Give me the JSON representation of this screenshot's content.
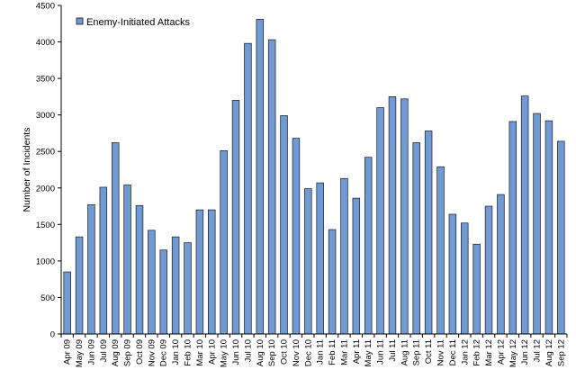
{
  "chart_data": {
    "type": "bar",
    "title": "",
    "xlabel": "",
    "ylabel": "Number of Incidents",
    "ylim": [
      0,
      4500
    ],
    "yticks": [
      0,
      500,
      1000,
      1500,
      2000,
      2500,
      3000,
      3500,
      4000,
      4500
    ],
    "grid": false,
    "legend_position": "top-left",
    "series": [
      {
        "name": "Enemy-Initiated Attacks",
        "color": "#6f9ad3",
        "values": [
          850,
          1330,
          1770,
          2010,
          2620,
          2040,
          1760,
          1420,
          1150,
          1330,
          1250,
          1700,
          1700,
          2510,
          3200,
          3980,
          4310,
          4030,
          2990,
          2680,
          1990,
          2070,
          1430,
          2130,
          1860,
          2420,
          3100,
          3250,
          3220,
          2620,
          2780,
          2290,
          1640,
          1520,
          1230,
          1750,
          1910,
          2910,
          3260,
          3020,
          2920,
          2640
        ]
      }
    ],
    "categories": [
      "Apr 09",
      "May 09",
      "Jun 09",
      "Jul 09",
      "Aug 09",
      "Sep 09",
      "Oct 09",
      "Nov 09",
      "Dec 09",
      "Jan 10",
      "Feb 10",
      "Mar 10",
      "Apr 10",
      "May 10",
      "Jun 10",
      "Jul 10",
      "Aug 10",
      "Sep 10",
      "Oct 10",
      "Nov 10",
      "Dec 10",
      "Jan 11",
      "Feb 11",
      "Mar 11",
      "Apr 11",
      "May 11",
      "Jun 11",
      "Jul 11",
      "Aug 11",
      "Sep 11",
      "Oct 11",
      "Nov 11",
      "Dec 11",
      "Jan 12",
      "Feb 12",
      "Mar 12",
      "Apr 12",
      "May 12",
      "Jun 12",
      "Jul 12",
      "Aug 12",
      "Sep 12"
    ]
  }
}
